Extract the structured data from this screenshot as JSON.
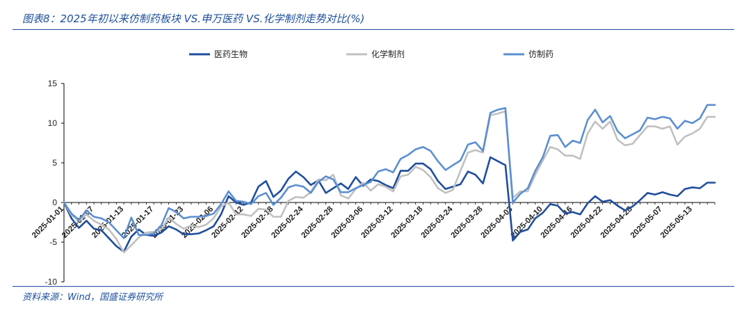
{
  "header": {
    "title": "图表8：2025年初以来仿制药板块 VS.申万医药 VS.化学制剂走势对比(%)"
  },
  "footer": {
    "source": "资料来源：Wind，国盛证券研究所"
  },
  "chart_data": {
    "type": "line",
    "title": "图表8：2025年初以来仿制药板块 VS.申万医药 VS.化学制剂走势对比(%)",
    "xlabel": "",
    "ylabel": "",
    "ylim": [
      -10,
      15
    ],
    "yticks": [
      -10,
      -5,
      0,
      5,
      10,
      15
    ],
    "grid": false,
    "legend_position": "top",
    "x": [
      "2025-01-01",
      "2025-01-02",
      "2025-01-03",
      "2025-01-06",
      "2025-01-07",
      "2025-01-08",
      "2025-01-09",
      "2025-01-10",
      "2025-01-13",
      "2025-01-14",
      "2025-01-15",
      "2025-01-16",
      "2025-01-17",
      "2025-01-20",
      "2025-01-21",
      "2025-01-22",
      "2025-01-23",
      "2025-01-24",
      "2025-01-27",
      "2025-02-05",
      "2025-02-06",
      "2025-02-07",
      "2025-02-10",
      "2025-02-11",
      "2025-02-12",
      "2025-02-13",
      "2025-02-14",
      "2025-02-17",
      "2025-02-18",
      "2025-02-19",
      "2025-02-20",
      "2025-02-21",
      "2025-02-24",
      "2025-02-25",
      "2025-02-26",
      "2025-02-27",
      "2025-02-28",
      "2025-03-03",
      "2025-03-04",
      "2025-03-05",
      "2025-03-06",
      "2025-03-07",
      "2025-03-10",
      "2025-03-11",
      "2025-03-12",
      "2025-03-13",
      "2025-03-14",
      "2025-03-17",
      "2025-03-18",
      "2025-03-19",
      "2025-03-20",
      "2025-03-21",
      "2025-03-24",
      "2025-03-25",
      "2025-03-26",
      "2025-03-27",
      "2025-03-28",
      "2025-03-31",
      "2025-04-01",
      "2025-04-02",
      "2025-04-03",
      "2025-04-07",
      "2025-04-08",
      "2025-04-09",
      "2025-04-10",
      "2025-04-11",
      "2025-04-14",
      "2025-04-15",
      "2025-04-16",
      "2025-04-17",
      "2025-04-18",
      "2025-04-21",
      "2025-04-22",
      "2025-04-23",
      "2025-04-24",
      "2025-04-25",
      "2025-04-28",
      "2025-04-29",
      "2025-04-30",
      "2025-05-06",
      "2025-05-07",
      "2025-05-08",
      "2025-05-09",
      "2025-05-12",
      "2025-05-13",
      "2025-05-14",
      "2025-05-15",
      "2025-05-16"
    ],
    "x_tick_labels": [
      "2025-01-01",
      "2025-01-07",
      "2025-01-13",
      "2025-01-17",
      "2025-01-23",
      "2025-02-06",
      "2025-02-12",
      "2025-02-18",
      "2025-02-24",
      "2025-02-28",
      "2025-03-06",
      "2025-03-12",
      "2025-03-18",
      "2025-03-24",
      "2025-03-28",
      "2025-04-03",
      "2025-04-10",
      "2025-04-16",
      "2025-04-22",
      "2025-04-28",
      "2025-05-07",
      "2025-05-13"
    ],
    "series": [
      {
        "name": "医药生物",
        "color": "#1f4e9c",
        "values": [
          0,
          -2,
          -3.2,
          -2.3,
          -3.3,
          -3.5,
          -4.5,
          -5.5,
          -6.2,
          -4.3,
          -3.4,
          -4.1,
          -4.2,
          -3.8,
          -3,
          -3.4,
          -4,
          -4,
          -3.9,
          -3.5,
          -3,
          -1.5,
          0.8,
          0,
          -0.3,
          0,
          2,
          2.7,
          0.7,
          1.5,
          3,
          3.9,
          3.2,
          2.2,
          2.8,
          1.2,
          1.8,
          2.4,
          1.7,
          3.2,
          2.1,
          2.9,
          2.7,
          2.2,
          1.8,
          4,
          4,
          4.9,
          4.9,
          4.2,
          2.7,
          1.7,
          2,
          2.3,
          3.9,
          3.5,
          2.4,
          5.7,
          5.2,
          4.7,
          -4.8,
          -3.7,
          -3.4,
          -2,
          -1.3,
          -0.2,
          -0.4,
          -1.4,
          -1.2,
          -1.5,
          -0.1,
          0.8,
          0.1,
          0.3,
          -0.4,
          -1,
          -0.5,
          0.3,
          1.2,
          1,
          1.3,
          1,
          0.8,
          1.7,
          1.9,
          1.8,
          2.5,
          2.5
        ]
      },
      {
        "name": "化学制剂",
        "color": "#c0c0c0",
        "values": [
          0,
          -1.6,
          -2.3,
          -1.5,
          -2.3,
          -2.8,
          -3.4,
          -4.6,
          -6.3,
          -5.4,
          -4.4,
          -3.8,
          -3.7,
          -3.4,
          -1.9,
          -2.7,
          -3.3,
          -2.9,
          -3.1,
          -2.8,
          -2,
          -0.5,
          0,
          -1.5,
          -1.5,
          -1.7,
          -0.8,
          -0.9,
          -1.8,
          -1.8,
          0.2,
          0.7,
          0.6,
          1.3,
          2.9,
          2.8,
          3.5,
          0.9,
          0.5,
          1.7,
          2.5,
          1.5,
          2.3,
          2,
          1.4,
          3.3,
          3.5,
          4.5,
          4.1,
          3.2,
          1.8,
          1.2,
          1.6,
          4,
          6.3,
          6.6,
          6.3,
          11,
          11.2,
          11.5,
          0.6,
          1.4,
          1.4,
          3.5,
          5.3,
          7,
          6.7,
          5.9,
          5.9,
          5.5,
          8.7,
          10.2,
          9.3,
          10.2,
          7.9,
          7.2,
          7.4,
          8.5,
          9.6,
          9.6,
          9.3,
          9.6,
          7.3,
          8.3,
          8.7,
          9.3,
          10.8,
          10.8
        ]
      },
      {
        "name": "仿制药",
        "color": "#5b8fd0",
        "values": [
          0,
          -1.4,
          -2.2,
          -1,
          -1.8,
          -2,
          -2.5,
          -3.5,
          -4.5,
          -1.9,
          -4.1,
          -4.1,
          -3.9,
          -2.9,
          -0.7,
          -1.2,
          -2,
          -1.8,
          -1.8,
          -1.7,
          -1.4,
          -0.2,
          1.4,
          0.2,
          0.1,
          -0.2,
          0.8,
          1.2,
          -0.3,
          0.6,
          1.9,
          2.2,
          2,
          1.2,
          2.6,
          3.3,
          2.9,
          1.3,
          1.3,
          1.8,
          2.2,
          2.6,
          3.9,
          4.2,
          3.8,
          5.5,
          6,
          6.7,
          7,
          6.5,
          5.2,
          4.1,
          4.7,
          5.3,
          7.3,
          7.6,
          6.5,
          11.3,
          11.7,
          11.9,
          0,
          1.1,
          1.8,
          4,
          5.7,
          8.4,
          8.5,
          7,
          7.8,
          7.5,
          10.4,
          11.7,
          10.1,
          10.9,
          9,
          8.1,
          8.6,
          9.1,
          10.7,
          10.5,
          10.8,
          10.6,
          9.3,
          10.3,
          10,
          10.6,
          12.3,
          12.3
        ]
      }
    ]
  }
}
